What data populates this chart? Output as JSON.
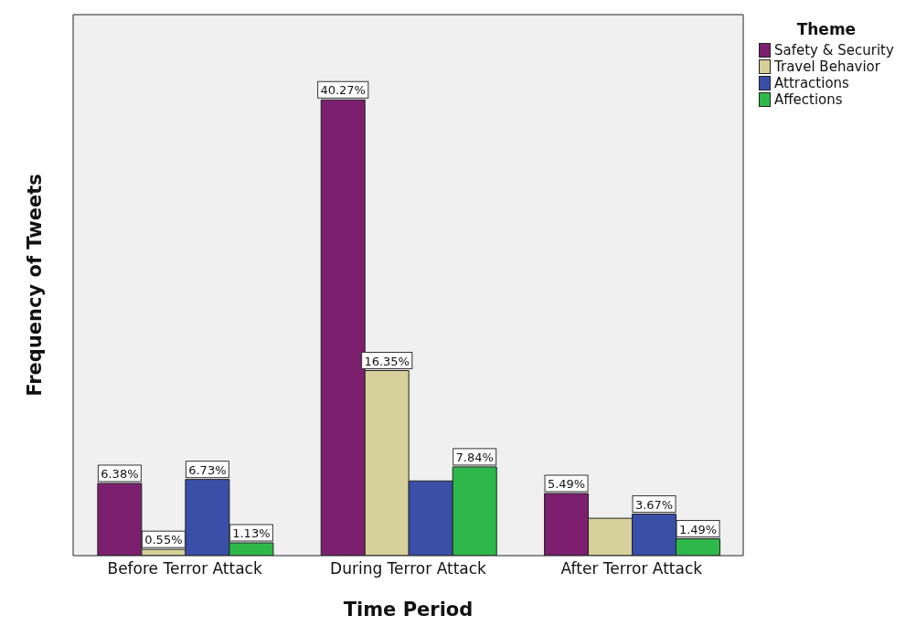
{
  "chart_data": {
    "type": "bar",
    "xlabel": "Time Period",
    "ylabel": "Frequency of Tweets",
    "legend_title": "Theme",
    "legend": "top right",
    "categories": [
      "Before Terror Attack",
      "During Terror Attack",
      "After Terror Attack"
    ],
    "ylim": [
      0,
      47.8
    ],
    "tick_labels": "x",
    "series": [
      {
        "name": "Safety & Security",
        "color": "#7b1f6e",
        "values": [
          6.38,
          40.27,
          5.49
        ],
        "value_labels": [
          "6.38%",
          "40.27%",
          "5.49%"
        ]
      },
      {
        "name": "Travel Behavior",
        "color": "#d6d09a",
        "values": [
          0.55,
          16.35,
          3.3
        ],
        "value_labels": [
          "0.55%",
          "16.35%",
          null
        ]
      },
      {
        "name": "Attractions",
        "color": "#3a4fa8",
        "values": [
          6.73,
          6.6,
          3.67
        ],
        "value_labels": [
          "6.73%",
          null,
          "3.67%"
        ]
      },
      {
        "name": "Affections",
        "color": "#2fb84a",
        "values": [
          1.13,
          7.84,
          1.49
        ],
        "value_labels": [
          "1.13%",
          "7.84%",
          "1.49%"
        ]
      }
    ]
  }
}
